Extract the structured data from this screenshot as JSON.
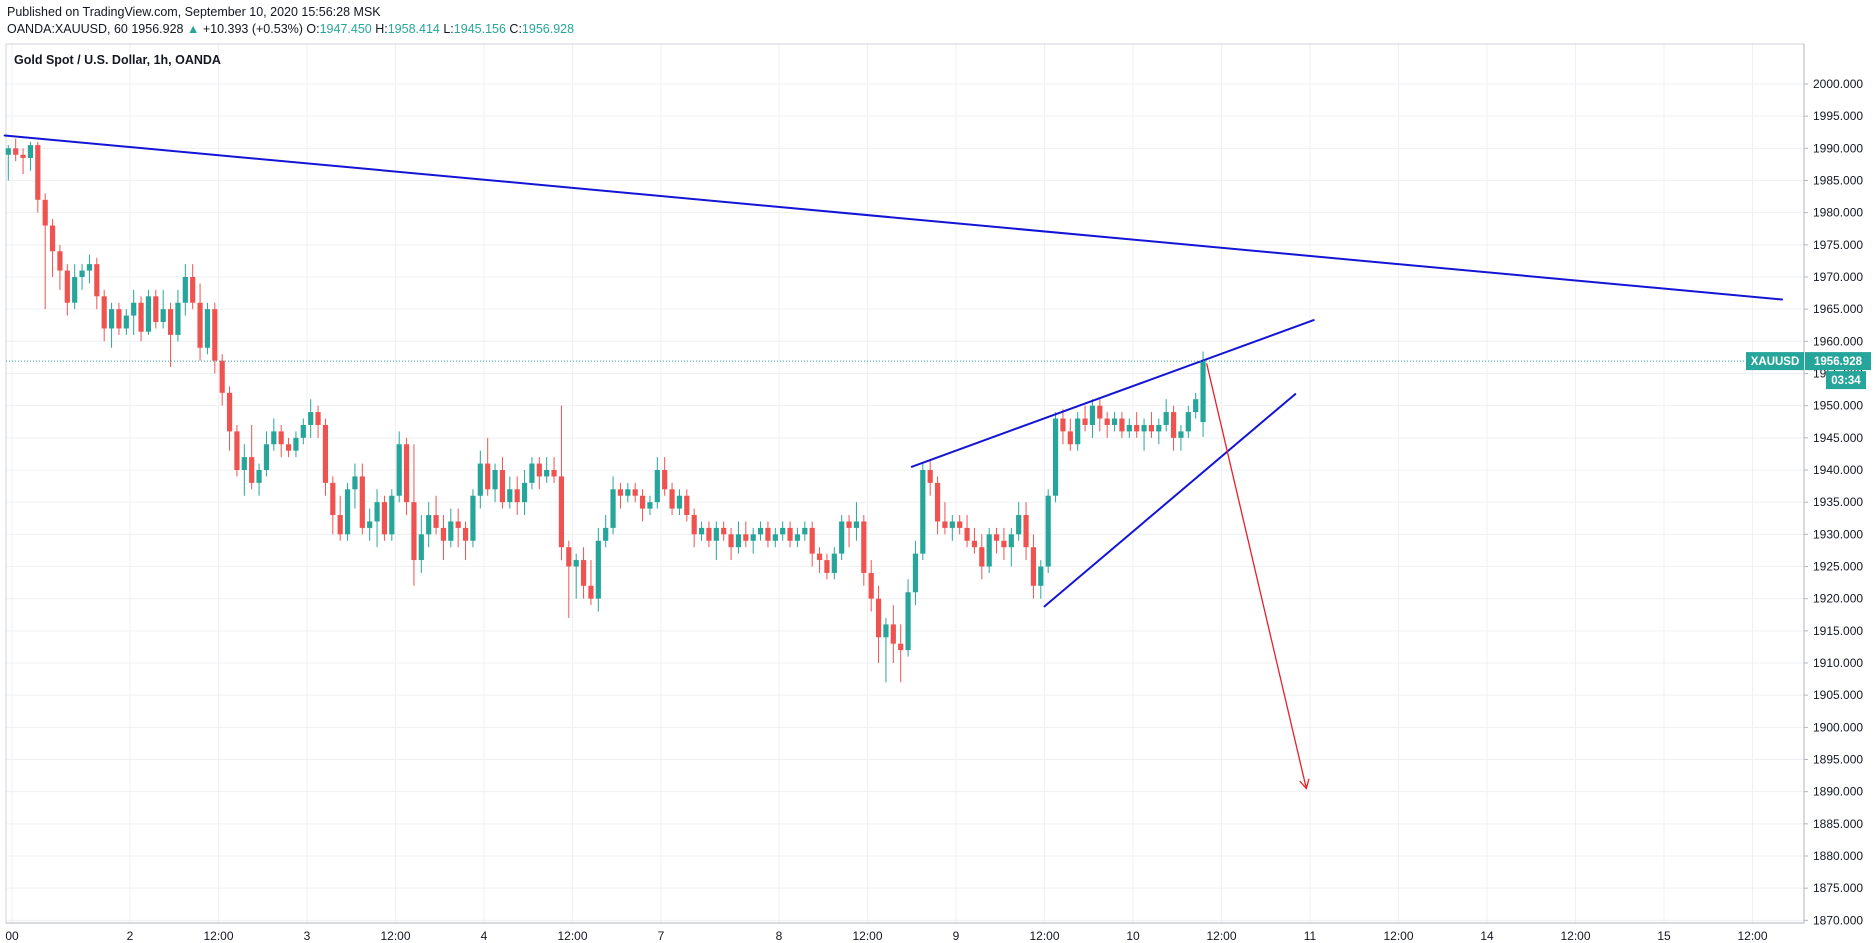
{
  "header": {
    "published": "Published on TradingView.com, September 10, 2020 15:56:28 MSK",
    "symbol": "OANDA:XAUUSD, 60",
    "last": "1956.928",
    "change_arrow": "▲",
    "change": "+10.393 (+0.53%)",
    "open_label": "O:",
    "open": "1947.450",
    "high_label": "H:",
    "high": "1958.414",
    "low_label": "L:",
    "low": "1945.156",
    "close_label": "C:",
    "close": "1956.928"
  },
  "colors": {
    "up": "#26a69a",
    "down": "#ef5350",
    "trendline": "#1414d6",
    "projection": "#e8202a",
    "price_line": "#26a69a"
  },
  "chart_data": {
    "type": "candlestick",
    "title": "Gold Spot / U.S. Dollar, 1h, OANDA",
    "ylim": [
      1867.5,
      2003
    ],
    "y_ticks": [
      "2000.000",
      "1995.000",
      "1990.000",
      "1985.000",
      "1980.000",
      "1975.000",
      "1970.000",
      "1965.000",
      "1960.000",
      "1955.000",
      "1950.000",
      "1945.000",
      "1940.000",
      "1935.000",
      "1930.000",
      "1925.000",
      "1920.000",
      "1915.000",
      "1910.000",
      "1905.000",
      "1900.000",
      "1895.000",
      "1890.000",
      "1885.000",
      "1880.000",
      "1875.000",
      "1870.000"
    ],
    "x_ticks": [
      {
        "label": "00",
        "t": 0
      },
      {
        "label": "2",
        "t": 16
      },
      {
        "label": "12:00",
        "t": 28
      },
      {
        "label": "3",
        "t": 40
      },
      {
        "label": "12:00",
        "t": 52
      },
      {
        "label": "4",
        "t": 64
      },
      {
        "label": "12:00",
        "t": 76
      },
      {
        "label": "7",
        "t": 88
      },
      {
        "label": "8",
        "t": 104
      },
      {
        "label": "12:00",
        "t": 116
      },
      {
        "label": "9",
        "t": 128
      },
      {
        "label": "12:00",
        "t": 140
      },
      {
        "label": "10",
        "t": 152
      },
      {
        "label": "12:00",
        "t": 164
      },
      {
        "label": "11",
        "t": 176
      },
      {
        "label": "12:00",
        "t": 188
      },
      {
        "label": "14",
        "t": 200
      },
      {
        "label": "12:00",
        "t": 212
      },
      {
        "label": "15",
        "t": 224
      },
      {
        "label": "12:00",
        "t": 236
      }
    ],
    "last_price": 1956.928,
    "last_price_label": "XAUUSD",
    "last_price_text": "1956.928",
    "countdown": "03:34",
    "candles": [
      [
        -0.5,
        1989.0,
        1990.5,
        1985.0,
        1990.0
      ],
      [
        0.5,
        1990.0,
        1991.5,
        1988.0,
        1989.0
      ],
      [
        1.5,
        1989.0,
        1990.0,
        1986.0,
        1988.5
      ],
      [
        2.5,
        1988.5,
        1991.0,
        1986.5,
        1990.5
      ],
      [
        3.5,
        1990.5,
        1991.0,
        1980.0,
        1982.0
      ],
      [
        4.5,
        1982.0,
        1983.0,
        1965.0,
        1978.0
      ],
      [
        5.5,
        1978.0,
        1979.0,
        1970.0,
        1974.0
      ],
      [
        6.5,
        1974.0,
        1975.0,
        1968.0,
        1971.0
      ],
      [
        7.5,
        1971.0,
        1972.0,
        1964.0,
        1966.0
      ],
      [
        8.5,
        1966.0,
        1972.0,
        1965.0,
        1970.0
      ],
      [
        9.5,
        1970.0,
        1972.0,
        1968.0,
        1971.0
      ],
      [
        10.5,
        1971.0,
        1973.5,
        1969.0,
        1972.0
      ],
      [
        11.5,
        1972.0,
        1973.0,
        1965.0,
        1967.0
      ],
      [
        12.5,
        1967.0,
        1968.0,
        1960.0,
        1962.0
      ],
      [
        13.5,
        1962.0,
        1966.0,
        1959.0,
        1965.0
      ],
      [
        14.5,
        1965.0,
        1966.0,
        1961.0,
        1962.0
      ],
      [
        15.5,
        1962.0,
        1965.0,
        1961.0,
        1964.0
      ],
      [
        16.5,
        1964.0,
        1968.0,
        1961.0,
        1966.0
      ],
      [
        17.5,
        1966.0,
        1967.0,
        1960.0,
        1961.5
      ],
      [
        18.5,
        1961.5,
        1968.0,
        1961.0,
        1967.0
      ],
      [
        19.5,
        1967.0,
        1968.0,
        1962.0,
        1963.0
      ],
      [
        20.5,
        1963.0,
        1968.0,
        1962.0,
        1965.0
      ],
      [
        21.5,
        1965.0,
        1966.0,
        1956.0,
        1961.0
      ],
      [
        22.5,
        1961.0,
        1968.0,
        1960.0,
        1966.0
      ],
      [
        23.5,
        1966.0,
        1972.0,
        1964.0,
        1970.0
      ],
      [
        24.5,
        1970.0,
        1972.0,
        1965.0,
        1966.0
      ],
      [
        25.5,
        1966.0,
        1969.0,
        1957.0,
        1959.0
      ],
      [
        26.5,
        1959.0,
        1966.0,
        1958.0,
        1965.0
      ],
      [
        27.5,
        1965.0,
        1966.0,
        1955.0,
        1957.0
      ],
      [
        28.5,
        1957.0,
        1958.0,
        1950.0,
        1952.0
      ],
      [
        29.5,
        1952.0,
        1953.0,
        1943.0,
        1946.0
      ],
      [
        30.5,
        1946.0,
        1947.0,
        1939.0,
        1940.0
      ],
      [
        31.5,
        1940.0,
        1944.0,
        1936.0,
        1942.0
      ],
      [
        32.5,
        1942.0,
        1947.0,
        1937.0,
        1938.0
      ],
      [
        33.5,
        1938.0,
        1941.0,
        1936.0,
        1940.0
      ],
      [
        34.5,
        1940.0,
        1946.0,
        1939.0,
        1944.0
      ],
      [
        35.5,
        1944.0,
        1948.0,
        1943.0,
        1946.0
      ],
      [
        36.5,
        1946.0,
        1947.0,
        1942.0,
        1944.0
      ],
      [
        37.5,
        1944.0,
        1945.0,
        1942.0,
        1943.0
      ],
      [
        38.5,
        1943.0,
        1946.0,
        1942.0,
        1945.0
      ],
      [
        39.5,
        1945.0,
        1948.0,
        1944.0,
        1947.0
      ],
      [
        40.5,
        1947.0,
        1951.0,
        1945.0,
        1949.0
      ],
      [
        41.5,
        1949.0,
        1950.0,
        1945.0,
        1947.0
      ],
      [
        42.5,
        1947.0,
        1948.0,
        1936.0,
        1938.0
      ],
      [
        43.5,
        1938.0,
        1939.0,
        1930.0,
        1933.0
      ],
      [
        44.5,
        1933.0,
        1936.0,
        1929.0,
        1930.0
      ],
      [
        45.5,
        1930.0,
        1938.0,
        1929.0,
        1937.0
      ],
      [
        46.5,
        1937.0,
        1941.0,
        1934.0,
        1939.0
      ],
      [
        47.5,
        1939.0,
        1941.0,
        1930.0,
        1931.0
      ],
      [
        48.5,
        1931.0,
        1934.0,
        1929.0,
        1932.0
      ],
      [
        49.5,
        1932.0,
        1937.0,
        1928.0,
        1935.0
      ],
      [
        50.5,
        1935.0,
        1936.0,
        1929.0,
        1930.0
      ],
      [
        51.5,
        1930.0,
        1937.0,
        1929.0,
        1936.0
      ],
      [
        52.5,
        1936.0,
        1946.0,
        1935.0,
        1944.0
      ],
      [
        53.5,
        1944.0,
        1945.0,
        1933.0,
        1935.0
      ],
      [
        54.5,
        1935.0,
        1944.0,
        1922.0,
        1926.0
      ],
      [
        55.5,
        1926.0,
        1933.0,
        1924.0,
        1930.0
      ],
      [
        56.5,
        1930.0,
        1935.0,
        1928.0,
        1933.0
      ],
      [
        57.5,
        1933.0,
        1936.0,
        1930.0,
        1931.0
      ],
      [
        58.5,
        1931.0,
        1933.0,
        1926.0,
        1929.0
      ],
      [
        59.5,
        1929.0,
        1934.0,
        1928.0,
        1932.0
      ],
      [
        60.5,
        1932.0,
        1934.0,
        1928.0,
        1931.0
      ],
      [
        61.5,
        1931.0,
        1932.0,
        1926.0,
        1929.0
      ],
      [
        62.5,
        1929.0,
        1937.0,
        1928.0,
        1936.0
      ],
      [
        63.5,
        1936.0,
        1943.0,
        1934.0,
        1941.0
      ],
      [
        64.5,
        1941.0,
        1945.0,
        1936.0,
        1937.0
      ],
      [
        65.5,
        1937.0,
        1941.0,
        1935.0,
        1940.0
      ],
      [
        66.5,
        1940.0,
        1942.0,
        1934.0,
        1935.0
      ],
      [
        67.5,
        1935.0,
        1939.0,
        1934.0,
        1937.0
      ],
      [
        68.5,
        1937.0,
        1939.0,
        1933.0,
        1935.0
      ],
      [
        69.5,
        1935.0,
        1940.0,
        1933.0,
        1938.0
      ],
      [
        70.5,
        1938.0,
        1942.0,
        1937.0,
        1941.0
      ],
      [
        71.5,
        1941.0,
        1942.0,
        1937.0,
        1939.0
      ],
      [
        72.5,
        1939.0,
        1942.0,
        1938.0,
        1940.0
      ],
      [
        73.5,
        1940.0,
        1942.0,
        1938.0,
        1939.0
      ],
      [
        74.5,
        1939.0,
        1950.0,
        1926.0,
        1928.0
      ],
      [
        75.5,
        1928.0,
        1929.0,
        1917.0,
        1925.0
      ],
      [
        76.5,
        1925.0,
        1927.0,
        1920.0,
        1926.0
      ],
      [
        77.5,
        1926.0,
        1928.0,
        1920.0,
        1922.0
      ],
      [
        78.5,
        1922.0,
        1926.0,
        1919.0,
        1920.0
      ],
      [
        79.5,
        1920.0,
        1931.0,
        1918.0,
        1929.0
      ],
      [
        80.5,
        1929.0,
        1933.0,
        1928.0,
        1931.0
      ],
      [
        81.5,
        1931.0,
        1939.0,
        1930.0,
        1937.0
      ],
      [
        82.5,
        1937.0,
        1938.0,
        1934.0,
        1936.0
      ],
      [
        83.5,
        1936.0,
        1938.0,
        1935.0,
        1937.0
      ],
      [
        84.5,
        1937.0,
        1938.0,
        1935.0,
        1936.0
      ],
      [
        85.5,
        1936.0,
        1937.0,
        1932.0,
        1934.0
      ],
      [
        86.5,
        1934.0,
        1936.0,
        1933.0,
        1935.0
      ],
      [
        87.5,
        1935.0,
        1942.0,
        1934.0,
        1940.0
      ],
      [
        88.5,
        1940.0,
        1942.0,
        1936.0,
        1937.0
      ],
      [
        89.5,
        1937.0,
        1938.0,
        1933.0,
        1934.0
      ],
      [
        90.5,
        1934.0,
        1937.0,
        1933.0,
        1936.0
      ],
      [
        91.5,
        1936.0,
        1937.0,
        1932.0,
        1933.0
      ],
      [
        92.5,
        1933.0,
        1934.0,
        1928.0,
        1930.0
      ],
      [
        93.5,
        1930.0,
        1932.0,
        1929.0,
        1931.0
      ],
      [
        94.5,
        1931.0,
        1932.0,
        1928.0,
        1929.0
      ],
      [
        95.5,
        1929.0,
        1932.0,
        1926.0,
        1931.0
      ],
      [
        96.5,
        1931.0,
        1932.0,
        1929.0,
        1930.0
      ],
      [
        97.5,
        1930.0,
        1931.0,
        1926.0,
        1928.0
      ],
      [
        98.5,
        1928.0,
        1932.0,
        1927.0,
        1930.0
      ],
      [
        99.5,
        1930.0,
        1932.0,
        1928.0,
        1929.0
      ],
      [
        100.5,
        1929.0,
        1931.0,
        1927.0,
        1930.0
      ],
      [
        101.5,
        1930.0,
        1932.0,
        1929.0,
        1931.0
      ],
      [
        102.5,
        1931.0,
        1932.0,
        1928.0,
        1929.0
      ],
      [
        103.5,
        1929.0,
        1931.0,
        1928.0,
        1930.0
      ],
      [
        104.5,
        1930.0,
        1932.0,
        1929.0,
        1931.0
      ],
      [
        105.5,
        1931.0,
        1932.0,
        1928.0,
        1929.0
      ],
      [
        106.5,
        1929.0,
        1931.0,
        1928.0,
        1930.0
      ],
      [
        107.5,
        1930.0,
        1932.0,
        1929.0,
        1931.0
      ],
      [
        108.5,
        1931.0,
        1932.0,
        1925.0,
        1927.0
      ],
      [
        109.5,
        1927.0,
        1928.0,
        1924.0,
        1926.0
      ],
      [
        110.5,
        1926.0,
        1927.0,
        1923.0,
        1924.0
      ],
      [
        111.5,
        1924.0,
        1928.0,
        1923.0,
        1927.0
      ],
      [
        112.5,
        1927.0,
        1933.0,
        1926.0,
        1932.0
      ],
      [
        113.5,
        1932.0,
        1933.0,
        1928.0,
        1931.0
      ],
      [
        114.5,
        1931.0,
        1935.0,
        1929.0,
        1932.0
      ],
      [
        115.5,
        1932.0,
        1933.0,
        1922.0,
        1924.0
      ],
      [
        116.5,
        1924.0,
        1926.0,
        1918.0,
        1920.0
      ],
      [
        117.5,
        1920.0,
        1922.0,
        1910.0,
        1914.0
      ],
      [
        118.5,
        1914.0,
        1917.0,
        1907.0,
        1916.0
      ],
      [
        119.5,
        1916.0,
        1919.0,
        1910.0,
        1913.0
      ],
      [
        120.5,
        1913.0,
        1916.0,
        1907.0,
        1912.0
      ],
      [
        121.5,
        1912.0,
        1923.0,
        1911.0,
        1921.0
      ],
      [
        122.5,
        1921.0,
        1929.0,
        1919.0,
        1927.0
      ],
      [
        123.5,
        1927.0,
        1941.0,
        1926.0,
        1940.0
      ],
      [
        124.5,
        1940.0,
        1941.5,
        1936.0,
        1938.0
      ],
      [
        125.5,
        1938.0,
        1939.0,
        1930.0,
        1932.0
      ],
      [
        126.5,
        1932.0,
        1935.0,
        1930.0,
        1931.0
      ],
      [
        127.5,
        1931.0,
        1933.0,
        1929.0,
        1932.0
      ],
      [
        128.5,
        1932.0,
        1933.0,
        1930.0,
        1931.0
      ],
      [
        129.5,
        1931.0,
        1933.0,
        1928.0,
        1929.0
      ],
      [
        130.5,
        1929.0,
        1931.0,
        1927.0,
        1928.0
      ],
      [
        131.5,
        1928.0,
        1930.0,
        1923.0,
        1925.0
      ],
      [
        132.5,
        1925.0,
        1931.0,
        1924.0,
        1930.0
      ],
      [
        133.5,
        1930.0,
        1931.0,
        1927.0,
        1929.0
      ],
      [
        134.5,
        1929.0,
        1931.0,
        1926.0,
        1928.0
      ],
      [
        135.5,
        1928.0,
        1931.0,
        1925.0,
        1930.0
      ],
      [
        136.5,
        1930.0,
        1935.0,
        1929.0,
        1933.0
      ],
      [
        137.5,
        1933.0,
        1935.0,
        1926.0,
        1928.0
      ],
      [
        138.5,
        1928.0,
        1930.0,
        1920.0,
        1922.0
      ],
      [
        139.5,
        1922.0,
        1926.0,
        1920.0,
        1925.0
      ],
      [
        140.5,
        1925.0,
        1937.0,
        1924.0,
        1936.0
      ],
      [
        141.5,
        1936.0,
        1949.0,
        1935.0,
        1948.0
      ],
      [
        142.5,
        1948.0,
        1949.5,
        1944.0,
        1946.0
      ],
      [
        143.5,
        1946.0,
        1948.0,
        1943.0,
        1944.0
      ],
      [
        144.5,
        1944.0,
        1949.0,
        1943.0,
        1948.0
      ],
      [
        145.5,
        1948.0,
        1950.0,
        1946.0,
        1947.0
      ],
      [
        146.5,
        1947.0,
        1951.0,
        1945.0,
        1950.0
      ],
      [
        147.5,
        1950.0,
        1951.0,
        1946.0,
        1948.0
      ],
      [
        148.5,
        1948.0,
        1949.0,
        1945.0,
        1947.0
      ],
      [
        149.5,
        1947.0,
        1949.0,
        1946.0,
        1948.0
      ],
      [
        150.5,
        1948.0,
        1949.0,
        1945.0,
        1946.0
      ],
      [
        151.5,
        1946.0,
        1948.0,
        1945.0,
        1947.0
      ],
      [
        152.5,
        1947.0,
        1949.0,
        1945.0,
        1946.0
      ],
      [
        153.5,
        1946.0,
        1948.0,
        1943.0,
        1947.0
      ],
      [
        154.5,
        1947.0,
        1949.0,
        1945.0,
        1946.0
      ],
      [
        155.5,
        1946.0,
        1948.0,
        1944.0,
        1947.0
      ],
      [
        156.5,
        1947.0,
        1951.0,
        1946.0,
        1949.0
      ],
      [
        157.5,
        1949.0,
        1950.0,
        1943.0,
        1945.0
      ],
      [
        158.5,
        1945.0,
        1947.0,
        1943.0,
        1946.0
      ],
      [
        159.5,
        1946.0,
        1950.0,
        1945.0,
        1949.0
      ],
      [
        160.5,
        1949.0,
        1952.0,
        1948.0,
        1951.0
      ],
      [
        161.5,
        1947.45,
        1958.414,
        1945.156,
        1956.928
      ]
    ],
    "drawings": {
      "resistance_line": [
        [
          -1,
          1992.0
        ],
        [
          240,
          1966.5
        ]
      ],
      "wedge_upper": [
        [
          122,
          1940.5
        ],
        [
          176.5,
          1963.3
        ]
      ],
      "wedge_lower": [
        [
          140,
          1918.8
        ],
        [
          174,
          1951.8
        ]
      ],
      "projection_arrow": [
        [
          162,
          1956.5
        ],
        [
          175.5,
          1890.5
        ]
      ]
    }
  }
}
